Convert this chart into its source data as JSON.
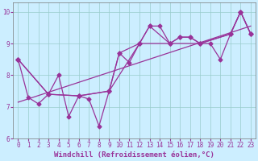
{
  "xlabel": "Windchill (Refroidissement éolien,°C)",
  "bg_color": "#cceeff",
  "line_color": "#993399",
  "grid_color": "#99cccc",
  "xlim": [
    -0.5,
    23.5
  ],
  "ylim": [
    6.0,
    10.3
  ],
  "yticks": [
    6,
    7,
    8,
    9,
    10
  ],
  "xticks": [
    0,
    1,
    2,
    3,
    4,
    5,
    6,
    7,
    8,
    9,
    10,
    11,
    12,
    13,
    14,
    15,
    16,
    17,
    18,
    19,
    20,
    21,
    22,
    23
  ],
  "line1_x": [
    0,
    1,
    2,
    3,
    4,
    5,
    6,
    7,
    8,
    9,
    10,
    11,
    12,
    13,
    14,
    15,
    16,
    17,
    18,
    19,
    20,
    21,
    22,
    23
  ],
  "line1_y": [
    8.5,
    7.3,
    7.1,
    7.4,
    8.0,
    6.7,
    7.35,
    7.25,
    6.4,
    7.5,
    8.7,
    8.4,
    9.0,
    9.55,
    9.55,
    9.0,
    9.2,
    9.2,
    9.0,
    9.0,
    8.5,
    9.3,
    10.0,
    9.3
  ],
  "line2_x": [
    0,
    3,
    6,
    9,
    10,
    12,
    13,
    15,
    16,
    17,
    18,
    21,
    22,
    23
  ],
  "line2_y": [
    8.5,
    7.4,
    7.35,
    7.5,
    8.7,
    9.0,
    9.55,
    9.0,
    9.2,
    9.2,
    9.0,
    9.3,
    10.0,
    9.3
  ],
  "line3_x": [
    0,
    3,
    6,
    9,
    12,
    15,
    18,
    21,
    22,
    23
  ],
  "line3_y": [
    8.5,
    7.4,
    7.35,
    7.5,
    9.0,
    9.0,
    9.0,
    9.3,
    10.0,
    9.3
  ],
  "line4_x": [
    0,
    23
  ],
  "line4_y": [
    7.15,
    9.55
  ],
  "marker_size": 2.5,
  "linewidth": 0.9,
  "tick_fontsize": 5.5,
  "label_fontsize": 6.5
}
